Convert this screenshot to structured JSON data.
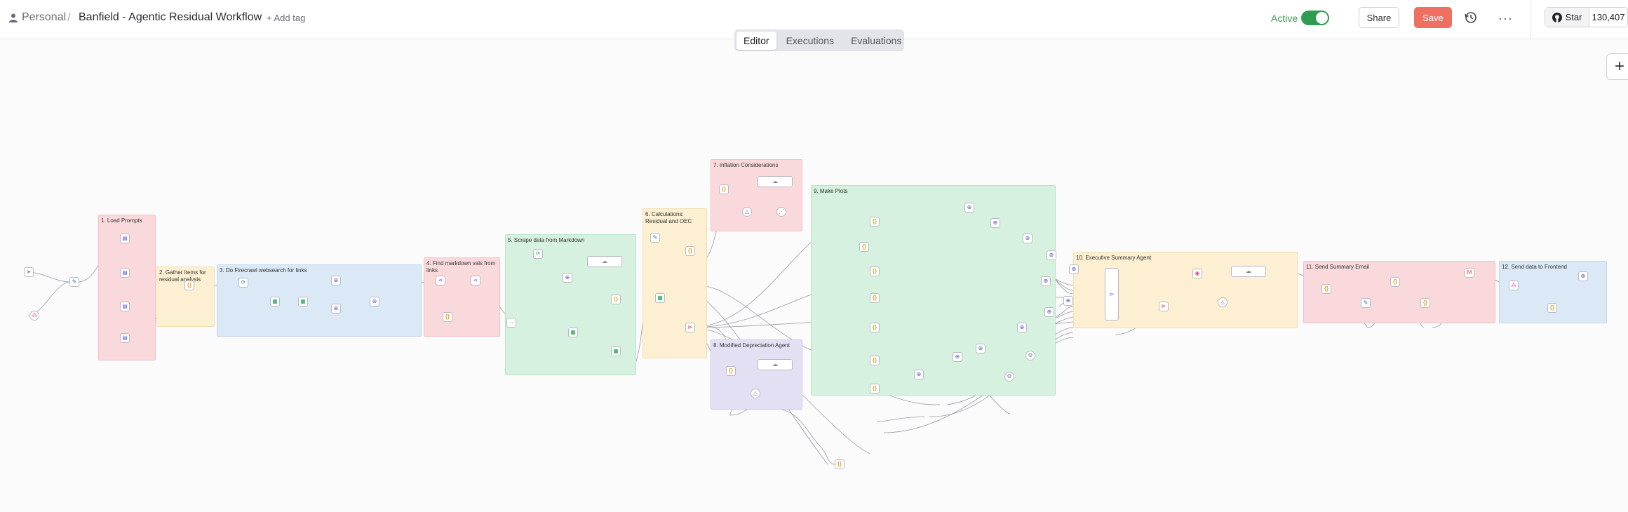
{
  "header": {
    "breadcrumb_root": "Personal",
    "workflow_title": "Banfield - Agentic Residual Workflow",
    "add_tag_label": "+ Add tag",
    "active_label": "Active",
    "share_label": "Share",
    "save_label": "Save",
    "more_label": "···",
    "github_star_label": "Star",
    "github_star_count": "130,407"
  },
  "tabs": [
    {
      "label": "Editor",
      "active": true
    },
    {
      "label": "Executions",
      "active": false
    },
    {
      "label": "Evaluations",
      "active": false
    }
  ],
  "canvas": {
    "add_node_label": "+",
    "sticky_notes": [
      {
        "title": "1. Load Prompts",
        "color": "pink"
      },
      {
        "title": "2. Gather Items for residual analysis",
        "color": "yellow"
      },
      {
        "title": "3. Do Firecrawl websearch for links",
        "color": "blue"
      },
      {
        "title": "4. Find markdown vals from links",
        "color": "pink"
      },
      {
        "title": "5. Scrape data from Markdown",
        "color": "green"
      },
      {
        "title": "6. Calculations: Residual and OEC",
        "color": "yellow"
      },
      {
        "title": "7. Inflation Considerations",
        "color": "pink"
      },
      {
        "title": "8. Modified Depreciation Agent",
        "color": "purple"
      },
      {
        "title": "9. Make Plots",
        "color": "green"
      },
      {
        "title": "10. Executive Summary Agent",
        "color": "yellow"
      },
      {
        "title": "11. Send Summary Email",
        "color": "pink"
      },
      {
        "title": "12. Send data to Frontend",
        "color": "blue"
      }
    ]
  }
}
